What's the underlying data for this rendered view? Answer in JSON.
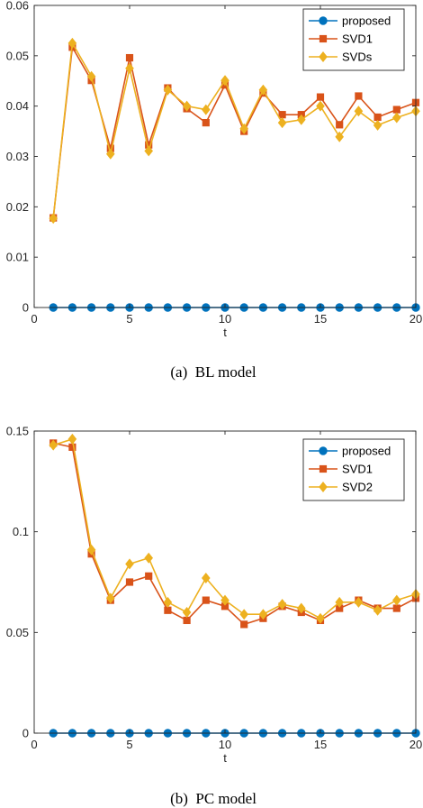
{
  "colors": {
    "proposed": "#0072BD",
    "svd1": "#D95319",
    "svd2": "#EDB120",
    "axis": "#262626",
    "legend_border": "#262626"
  },
  "chart_data": [
    {
      "type": "line",
      "caption": "(a)  BL model",
      "xlabel": "t",
      "ylabel": "",
      "xlim": [
        0,
        20
      ],
      "ylim": [
        0,
        0.06
      ],
      "x_ticks": [
        0,
        5,
        10,
        15,
        20
      ],
      "y_ticks": [
        0,
        0.01,
        0.02,
        0.03,
        0.04,
        0.05,
        0.06
      ],
      "y_tick_labels": [
        "0",
        "0.01",
        "0.02",
        "0.03",
        "0.04",
        "0.05",
        "0.06"
      ],
      "grid": false,
      "legend_position": "top-right",
      "x": [
        1,
        2,
        3,
        4,
        5,
        6,
        7,
        8,
        9,
        10,
        11,
        12,
        13,
        14,
        15,
        16,
        17,
        18,
        19,
        20
      ],
      "series": [
        {
          "name": "proposed",
          "marker": "circle",
          "color_key": "proposed",
          "values": [
            0,
            0,
            0,
            0,
            0,
            0,
            0,
            0,
            0,
            0,
            0,
            0,
            0,
            0,
            0,
            0,
            0,
            0,
            0,
            0
          ]
        },
        {
          "name": "SVD1",
          "marker": "square",
          "color_key": "svd1",
          "values": [
            0.0178,
            0.0517,
            0.0451,
            0.0316,
            0.0496,
            0.0323,
            0.0436,
            0.0395,
            0.0367,
            0.0442,
            0.035,
            0.0426,
            0.0383,
            0.0383,
            0.0418,
            0.0363,
            0.042,
            0.0378,
            0.0393,
            0.0407
          ]
        },
        {
          "name": "SVDs",
          "marker": "diamond",
          "color_key": "svd2",
          "values": [
            0.0177,
            0.0525,
            0.0459,
            0.0305,
            0.0475,
            0.0311,
            0.0432,
            0.04,
            0.0393,
            0.0451,
            0.0355,
            0.0432,
            0.0367,
            0.0373,
            0.04,
            0.0339,
            0.039,
            0.0362,
            0.0377,
            0.039
          ]
        }
      ]
    },
    {
      "type": "line",
      "caption": "(b)  PC model",
      "xlabel": "t",
      "ylabel": "",
      "xlim": [
        0,
        20
      ],
      "ylim": [
        0,
        0.15
      ],
      "x_ticks": [
        0,
        5,
        10,
        15,
        20
      ],
      "y_ticks": [
        0,
        0.05,
        0.1,
        0.15
      ],
      "y_tick_labels": [
        "0",
        "0.05",
        "0.1",
        "0.15"
      ],
      "grid": false,
      "legend_position": "top-right",
      "x": [
        1,
        2,
        3,
        4,
        5,
        6,
        7,
        8,
        9,
        10,
        11,
        12,
        13,
        14,
        15,
        16,
        17,
        18,
        19,
        20
      ],
      "series": [
        {
          "name": "proposed",
          "marker": "circle",
          "color_key": "proposed",
          "values": [
            0,
            0,
            0,
            0,
            0,
            0,
            0,
            0,
            0,
            0,
            0,
            0,
            0,
            0,
            0,
            0,
            0,
            0,
            0,
            0
          ]
        },
        {
          "name": "SVD1",
          "marker": "square",
          "color_key": "svd1",
          "values": [
            0.144,
            0.142,
            0.089,
            0.066,
            0.075,
            0.078,
            0.061,
            0.056,
            0.066,
            0.063,
            0.054,
            0.057,
            0.063,
            0.06,
            0.056,
            0.062,
            0.066,
            0.062,
            0.062,
            0.067
          ]
        },
        {
          "name": "SVD2",
          "marker": "diamond",
          "color_key": "svd2",
          "values": [
            0.143,
            0.146,
            0.091,
            0.067,
            0.084,
            0.087,
            0.065,
            0.06,
            0.077,
            0.066,
            0.059,
            0.059,
            0.064,
            0.062,
            0.057,
            0.065,
            0.065,
            0.061,
            0.066,
            0.069
          ]
        }
      ]
    }
  ]
}
